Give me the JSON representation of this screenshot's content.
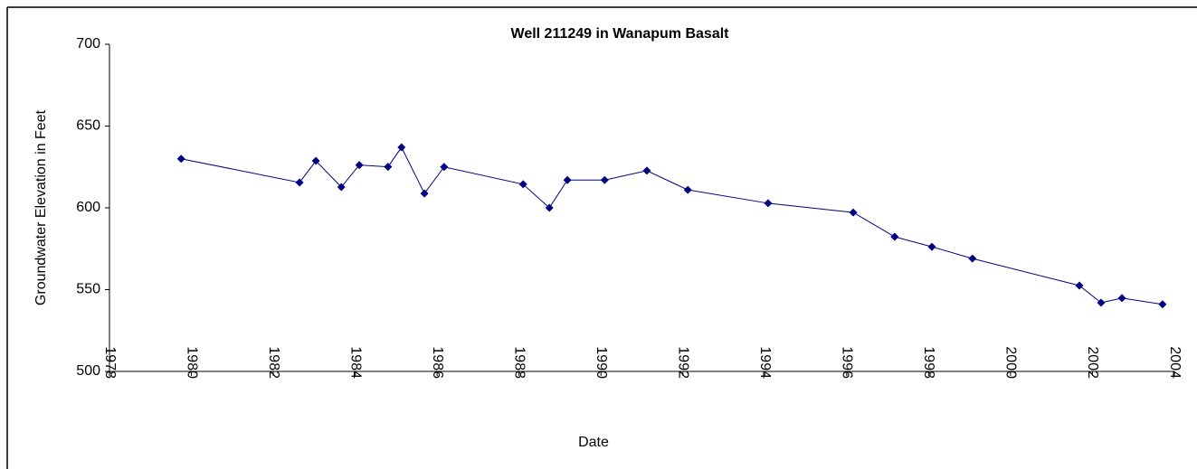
{
  "chart_data": {
    "type": "line",
    "title": "Well 211249 in Wanapum Basalt",
    "x_label": "Date",
    "y_label": "Groundwater Elevation in Feet",
    "xlim": [
      1978,
      2004
    ],
    "xticks": [
      1978,
      1980,
      1982,
      1984,
      1986,
      1988,
      1990,
      1992,
      1994,
      1996,
      1998,
      2000,
      2002,
      2004
    ],
    "ylim": [
      500,
      700
    ],
    "yticks": [
      500,
      550,
      600,
      650,
      700
    ],
    "grid": false,
    "series": [
      {
        "name": "Well 211249",
        "color": "#000080",
        "x": [
          1979.75,
          1982.64,
          1983.04,
          1983.66,
          1984.1,
          1984.8,
          1985.13,
          1985.69,
          1986.17,
          1988.1,
          1988.74,
          1989.18,
          1990.09,
          1991.12,
          1992.12,
          1994.08,
          1996.16,
          1997.17,
          1998.08,
          1999.07,
          2001.68,
          2002.21,
          2002.72,
          2003.71
        ],
        "values": [
          630,
          615.5,
          628.7,
          612.7,
          626.2,
          625.1,
          637,
          608.8,
          625,
          614.4,
          600,
          617,
          617,
          622.7,
          611,
          602.8,
          597.2,
          582.3,
          576.2,
          569,
          552.5,
          542,
          544.8,
          541
        ]
      }
    ]
  }
}
